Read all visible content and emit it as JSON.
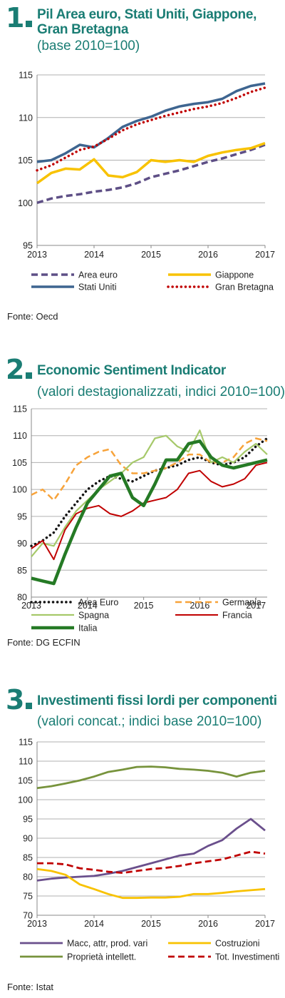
{
  "colors": {
    "teal": "#1a7d74",
    "purple_dashed": "#5e4f86",
    "steel_blue": "#3e6590",
    "gold": "#f8c200",
    "dark_red": "#c00000",
    "black": "#111111",
    "orange": "#f7a33a",
    "light_green": "#a6c96a",
    "dark_green": "#257a25",
    "purple": "#6a4f8c",
    "olive_green": "#77933c"
  },
  "panels": [
    {
      "number": "1",
      "title_lines": [
        "Pil Area euro, Stati Uniti, Giappone,",
        "Gran Bretagna"
      ],
      "subtitle": "(base 2010=100)",
      "source": "Fonte: Oecd"
    },
    {
      "number": "2",
      "title_lines": [
        "Economic Sentiment Indicator"
      ],
      "subtitle": "(valori destagionalizzati, indici 2010=100)",
      "source": "Fonte: DG ECFIN"
    },
    {
      "number": "3",
      "title_lines": [
        "Investimenti fissi lordi per componenti"
      ],
      "subtitle": "(valori concat.; indici base 2010=100)",
      "source": "Fonte: Istat"
    }
  ],
  "chart_data": [
    {
      "type": "line",
      "title": "Pil Area euro, Stati Uniti, Giappone, Gran Bretagna",
      "subtitle": "(base 2010=100)",
      "ylim": [
        95,
        115
      ],
      "yticks": [
        95,
        100,
        105,
        110,
        115
      ],
      "xlim": [
        2013,
        2017
      ],
      "xticks": [
        2013,
        2014,
        2015,
        2016,
        2017
      ],
      "grid": true,
      "x": [
        2013.0,
        2013.25,
        2013.5,
        2013.75,
        2014.0,
        2014.25,
        2014.5,
        2014.75,
        2015.0,
        2015.25,
        2015.5,
        2015.75,
        2016.0,
        2016.25,
        2016.5,
        2016.75,
        2017.0
      ],
      "series": [
        {
          "name": "Area euro",
          "color": "#5e4f86",
          "style": "dashed",
          "values": [
            100.0,
            100.5,
            100.8,
            101.0,
            101.3,
            101.5,
            101.8,
            102.3,
            103.0,
            103.4,
            103.8,
            104.3,
            104.8,
            105.2,
            105.7,
            106.2,
            106.8
          ]
        },
        {
          "name": "Giappone",
          "color": "#f8c200",
          "style": "solid",
          "values": [
            102.3,
            103.5,
            104.0,
            103.9,
            105.1,
            103.2,
            103.0,
            103.6,
            105.0,
            104.8,
            105.0,
            104.8,
            105.5,
            105.9,
            106.2,
            106.4,
            107.0
          ]
        },
        {
          "name": "Stati Uniti",
          "color": "#3e6590",
          "style": "solid",
          "values": [
            104.8,
            105.0,
            105.8,
            106.8,
            106.5,
            107.6,
            108.9,
            109.6,
            110.1,
            110.8,
            111.3,
            111.6,
            111.8,
            112.2,
            113.1,
            113.7,
            114.0
          ]
        },
        {
          "name": "Gran Bretagna",
          "color": "#c00000",
          "style": "dotted",
          "values": [
            103.8,
            104.4,
            105.3,
            106.2,
            106.6,
            107.5,
            108.5,
            109.2,
            109.7,
            110.2,
            110.6,
            111.0,
            111.3,
            111.7,
            112.3,
            113.0,
            113.5
          ]
        }
      ],
      "legend_order": [
        "Area euro",
        "Giappone",
        "Stati Uniti",
        "Gran Bretagna"
      ]
    },
    {
      "type": "line",
      "title": "Economic Sentiment Indicator",
      "subtitle": "(valori destagionalizzati, indici 2010=100)",
      "ylim": [
        80,
        115
      ],
      "yticks": [
        80,
        85,
        90,
        95,
        100,
        105,
        110,
        115
      ],
      "xlim": [
        2013,
        2017.2
      ],
      "xticks": [
        2013,
        2014,
        2015,
        2016,
        2017
      ],
      "grid": true,
      "x": [
        2013.0,
        2013.2,
        2013.4,
        2013.6,
        2013.8,
        2014.0,
        2014.2,
        2014.4,
        2014.6,
        2014.8,
        2015.0,
        2015.2,
        2015.4,
        2015.6,
        2015.8,
        2016.0,
        2016.2,
        2016.4,
        2016.6,
        2016.8,
        2017.0,
        2017.2
      ],
      "series": [
        {
          "name": "Area Euro",
          "color": "#111111",
          "style": "dotted",
          "values": [
            89.5,
            90.5,
            92.0,
            95.0,
            97.5,
            100.0,
            101.5,
            102.5,
            102.0,
            101.5,
            102.5,
            103.5,
            104.0,
            104.5,
            105.5,
            106.0,
            105.0,
            104.5,
            105.0,
            106.0,
            108.0,
            109.5
          ]
        },
        {
          "name": "Germania",
          "color": "#f7a33a",
          "style": "dashed",
          "values": [
            99.0,
            100.0,
            98.0,
            101.0,
            104.5,
            106.0,
            107.0,
            107.5,
            104.5,
            103.0,
            103.0,
            103.5,
            104.0,
            105.0,
            106.5,
            106.5,
            105.0,
            105.0,
            106.0,
            108.5,
            109.5,
            109.0
          ]
        },
        {
          "name": "Spagna",
          "color": "#a6c96a",
          "style": "solid",
          "values": [
            87.5,
            90.0,
            89.5,
            93.0,
            96.0,
            98.0,
            100.0,
            101.5,
            103.0,
            105.0,
            106.0,
            109.5,
            110.0,
            108.0,
            107.0,
            111.0,
            105.0,
            106.0,
            105.0,
            107.0,
            108.5,
            106.5
          ]
        },
        {
          "name": "Francia",
          "color": "#c00000",
          "style": "solid",
          "values": [
            89.0,
            90.5,
            87.0,
            92.5,
            95.5,
            96.5,
            97.0,
            95.5,
            95.0,
            96.0,
            97.5,
            98.0,
            98.5,
            100.0,
            103.0,
            103.5,
            101.5,
            100.5,
            101.0,
            102.0,
            104.5,
            105.0
          ]
        },
        {
          "name": "Italia",
          "color": "#257a25",
          "style": "solid",
          "values": [
            83.5,
            83.0,
            82.5,
            88.0,
            93.0,
            97.5,
            100.0,
            102.5,
            103.0,
            98.5,
            97.0,
            101.0,
            105.5,
            105.5,
            108.5,
            109.0,
            106.0,
            104.5,
            104.0,
            104.5,
            105.0,
            105.5
          ]
        }
      ],
      "legend_order": [
        "Area Euro",
        "Germania",
        "Spagna",
        "Francia",
        "Italia"
      ]
    },
    {
      "type": "line",
      "title": "Investimenti fissi lordi per componenti",
      "subtitle": "(valori concat.; indici base 2010=100)",
      "ylim": [
        70,
        115
      ],
      "yticks": [
        70,
        75,
        80,
        85,
        90,
        95,
        100,
        105,
        110,
        115
      ],
      "xlim": [
        2013,
        2017
      ],
      "xticks": [
        2013,
        2014,
        2015,
        2016,
        2017
      ],
      "grid": true,
      "x": [
        2013.0,
        2013.25,
        2013.5,
        2013.75,
        2014.0,
        2014.25,
        2014.5,
        2014.75,
        2015.0,
        2015.25,
        2015.5,
        2015.75,
        2016.0,
        2016.25,
        2016.5,
        2016.75,
        2017.0
      ],
      "series": [
        {
          "name": "Macc, attr, prod. vari",
          "color": "#6a4f8c",
          "style": "solid",
          "values": [
            79.0,
            79.5,
            79.8,
            80.0,
            80.2,
            80.8,
            81.5,
            82.5,
            83.5,
            84.5,
            85.5,
            86.0,
            88.0,
            89.5,
            92.5,
            95.0,
            92.0
          ]
        },
        {
          "name": "Costruzioni",
          "color": "#f8c200",
          "style": "solid",
          "values": [
            82.0,
            81.5,
            80.5,
            78.0,
            76.8,
            75.5,
            74.5,
            74.5,
            74.6,
            74.6,
            74.8,
            75.5,
            75.5,
            75.8,
            76.2,
            76.5,
            76.8
          ]
        },
        {
          "name": "Proprietà intellett.",
          "color": "#77933c",
          "style": "solid",
          "values": [
            103.0,
            103.5,
            104.2,
            105.0,
            106.0,
            107.2,
            107.8,
            108.5,
            108.6,
            108.4,
            108.0,
            107.8,
            107.5,
            107.0,
            106.0,
            107.0,
            107.5
          ]
        },
        {
          "name": "Tot. Investimenti",
          "color": "#c00000",
          "style": "dashed",
          "values": [
            83.5,
            83.5,
            83.2,
            82.2,
            81.8,
            81.3,
            81.0,
            81.5,
            82.0,
            82.3,
            82.8,
            83.5,
            84.0,
            84.5,
            85.5,
            86.5,
            86.0
          ]
        }
      ],
      "legend_order": [
        "Macc, attr, prod. vari",
        "Costruzioni",
        "Proprietà intellett.",
        "Tot. Investimenti"
      ]
    }
  ]
}
